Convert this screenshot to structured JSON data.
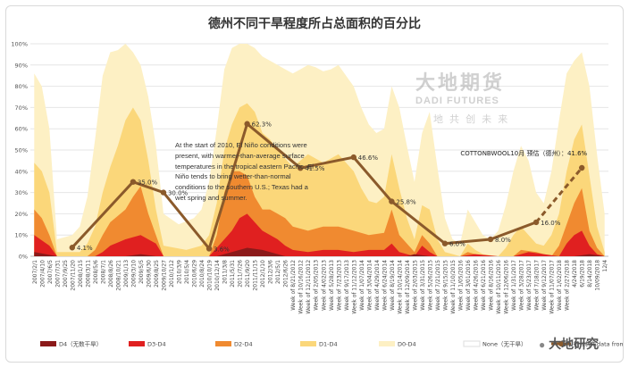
{
  "chart_data": {
    "type": "area",
    "title": "德州不同干旱程度所占总面积的百分比",
    "ylim": [
      0,
      100
    ],
    "yticks": [
      "0%",
      "10%",
      "20%",
      "30%",
      "40%",
      "50%",
      "60%",
      "70%",
      "80%",
      "90%",
      "100%"
    ],
    "x_tick_labels": [
      "2007/2/1",
      "2007/4/10",
      "2007/6/5",
      "2007/7/31",
      "2007/9/25",
      "2007/11/20",
      "2008/1/15",
      "2008/3/11",
      "2008/5/6",
      "2008/7/1",
      "2008/8/26",
      "2008/10/21",
      "2009/1/13",
      "2009/3/10",
      "2009/5/5",
      "2009/6/30",
      "2009/8/25",
      "2009/10/27",
      "2010/1/12",
      "2010/3/9",
      "2010/5/4",
      "2010/6/29",
      "2010/8/24",
      "2010/10/19",
      "2010/12/14",
      "2011/3/8",
      "2011/5/31",
      "2011/7/26",
      "2011/9/20",
      "2011/11/15",
      "2012/1/10",
      "2012/3/6",
      "2012/5/1",
      "2012/6/26",
      "Week of 8/21/2012",
      "Week of 10/16/2012",
      "Week of 12/11/2012",
      "Week of 2/05/2013",
      "Week of 4/02/2013",
      "Week of 5/28/2013",
      "Week of 7/23/2013",
      "Week of 9/17/2013",
      "Week of 11/12/2013",
      "Week of 1/07/2014",
      "Week of 3/04/2014",
      "Week of 4/29/2014",
      "Week of 6/24/2014",
      "Week of 8/19/2014",
      "Week of 10/14/2014",
      "Week of 12/09/2014",
      "Week of 2/03/2015",
      "Week of 3/31/2015",
      "Week of 5/26/2015",
      "Week of 7/21/2015",
      "Week of 9/15/2015",
      "Week of 11/10/2015",
      "Week of 1/05/2016",
      "Week of 3/01/2016",
      "Week of 4/26/2016",
      "Week of 6/21/2016",
      "Week of 8/16/2016",
      "Week of 10/11/2016",
      "Week of 12/06/2016",
      "Week of 1/31/2017",
      "Week of 3/28/2017",
      "Week of 5/23/2017",
      "Week of 7/18/2017",
      "Week of 9/12/2017",
      "Week of 11/07/2017",
      "Week of 1/02/2018",
      "Week of 2/27/2018",
      "4/24/2018",
      "6/19/2018",
      "8/14/2018",
      "10/09/2018",
      "12/4"
    ],
    "area_series": [
      {
        "name": "D4（无数干旱）",
        "color": "#8b1a1a",
        "values": [
          [
            0,
            2
          ],
          [
            3,
            0
          ],
          [
            12,
            0
          ],
          [
            14,
            1
          ],
          [
            16,
            0
          ],
          [
            24,
            0
          ],
          [
            26,
            2
          ],
          [
            28,
            4
          ],
          [
            30,
            3
          ],
          [
            32,
            1
          ],
          [
            33,
            0
          ],
          [
            49,
            0
          ],
          [
            50,
            1
          ],
          [
            52,
            0
          ],
          [
            57,
            0
          ],
          [
            61,
            0
          ],
          [
            71,
            0
          ],
          [
            73,
            1
          ],
          [
            75,
            0
          ]
        ]
      },
      {
        "name": "D3-D4",
        "color": "#e02020",
        "values": [
          [
            0,
            10
          ],
          [
            2,
            5
          ],
          [
            3,
            0
          ],
          [
            8,
            0
          ],
          [
            9,
            2
          ],
          [
            10,
            5
          ],
          [
            12,
            8
          ],
          [
            14,
            10
          ],
          [
            16,
            6
          ],
          [
            17,
            0
          ],
          [
            23,
            0
          ],
          [
            25,
            8
          ],
          [
            26,
            12
          ],
          [
            27,
            18
          ],
          [
            28,
            20
          ],
          [
            29,
            16
          ],
          [
            30,
            12
          ],
          [
            32,
            8
          ],
          [
            33,
            5
          ],
          [
            34,
            3
          ],
          [
            36,
            2
          ],
          [
            38,
            3
          ],
          [
            40,
            3
          ],
          [
            42,
            2
          ],
          [
            44,
            3
          ],
          [
            46,
            3
          ],
          [
            47,
            6
          ],
          [
            48,
            2
          ],
          [
            49,
            1
          ],
          [
            50,
            0
          ],
          [
            51,
            5
          ],
          [
            52,
            2
          ],
          [
            53,
            0
          ],
          [
            56,
            0
          ],
          [
            58,
            1
          ],
          [
            61,
            0
          ],
          [
            63,
            0
          ],
          [
            65,
            2
          ],
          [
            67,
            1
          ],
          [
            69,
            0
          ],
          [
            70,
            6
          ],
          [
            71,
            10
          ],
          [
            72,
            12
          ],
          [
            73,
            5
          ],
          [
            74,
            1
          ],
          [
            75,
            0
          ]
        ]
      },
      {
        "name": "D2-D4",
        "color": "#f08a30",
        "values": [
          [
            0,
            22
          ],
          [
            1,
            18
          ],
          [
            2,
            10
          ],
          [
            3,
            0
          ],
          [
            7,
            0
          ],
          [
            8,
            3
          ],
          [
            9,
            10
          ],
          [
            10,
            16
          ],
          [
            12,
            22
          ],
          [
            13,
            28
          ],
          [
            14,
            33
          ],
          [
            15,
            20
          ],
          [
            16,
            10
          ],
          [
            17,
            0
          ],
          [
            23,
            0
          ],
          [
            24,
            10
          ],
          [
            25,
            30
          ],
          [
            26,
            40
          ],
          [
            27,
            40
          ],
          [
            28,
            38
          ],
          [
            29,
            28
          ],
          [
            30,
            22
          ],
          [
            31,
            22
          ],
          [
            32,
            20
          ],
          [
            33,
            18
          ],
          [
            34,
            14
          ],
          [
            36,
            12
          ],
          [
            38,
            14
          ],
          [
            40,
            14
          ],
          [
            42,
            12
          ],
          [
            44,
            10
          ],
          [
            46,
            11
          ],
          [
            47,
            22
          ],
          [
            48,
            10
          ],
          [
            49,
            6
          ],
          [
            50,
            2
          ],
          [
            51,
            10
          ],
          [
            52,
            6
          ],
          [
            53,
            0
          ],
          [
            56,
            0
          ],
          [
            57,
            2
          ],
          [
            59,
            0
          ],
          [
            63,
            0
          ],
          [
            64,
            3
          ],
          [
            66,
            2
          ],
          [
            68,
            0
          ],
          [
            69,
            5
          ],
          [
            70,
            15
          ],
          [
            71,
            25
          ],
          [
            72,
            32
          ],
          [
            73,
            12
          ],
          [
            74,
            4
          ],
          [
            75,
            0
          ]
        ]
      },
      {
        "name": "D1-D4",
        "color": "#fbd77a",
        "values": [
          [
            0,
            44
          ],
          [
            1,
            40
          ],
          [
            2,
            30
          ],
          [
            3,
            2
          ],
          [
            6,
            2
          ],
          [
            7,
            6
          ],
          [
            8,
            14
          ],
          [
            9,
            30
          ],
          [
            10,
            42
          ],
          [
            11,
            52
          ],
          [
            12,
            64
          ],
          [
            13,
            70
          ],
          [
            14,
            64
          ],
          [
            15,
            45
          ],
          [
            16,
            22
          ],
          [
            17,
            5
          ],
          [
            20,
            3
          ],
          [
            22,
            5
          ],
          [
            23,
            10
          ],
          [
            24,
            25
          ],
          [
            25,
            50
          ],
          [
            26,
            62
          ],
          [
            27,
            70
          ],
          [
            28,
            72
          ],
          [
            29,
            68
          ],
          [
            30,
            58
          ],
          [
            31,
            55
          ],
          [
            32,
            50
          ],
          [
            33,
            46
          ],
          [
            34,
            42
          ],
          [
            35,
            45
          ],
          [
            36,
            48
          ],
          [
            37,
            46
          ],
          [
            38,
            44
          ],
          [
            39,
            46
          ],
          [
            40,
            48
          ],
          [
            41,
            44
          ],
          [
            42,
            40
          ],
          [
            43,
            32
          ],
          [
            44,
            26
          ],
          [
            45,
            25
          ],
          [
            46,
            28
          ],
          [
            47,
            48
          ],
          [
            48,
            32
          ],
          [
            49,
            18
          ],
          [
            50,
            8
          ],
          [
            51,
            24
          ],
          [
            52,
            22
          ],
          [
            53,
            8
          ],
          [
            54,
            2
          ],
          [
            56,
            0
          ],
          [
            57,
            6
          ],
          [
            58,
            3
          ],
          [
            59,
            1
          ],
          [
            61,
            0
          ],
          [
            62,
            4
          ],
          [
            63,
            10
          ],
          [
            64,
            14
          ],
          [
            65,
            10
          ],
          [
            66,
            6
          ],
          [
            67,
            5
          ],
          [
            68,
            10
          ],
          [
            69,
            20
          ],
          [
            70,
            40
          ],
          [
            71,
            55
          ],
          [
            72,
            62
          ],
          [
            73,
            38
          ],
          [
            74,
            14
          ],
          [
            75,
            2
          ]
        ]
      },
      {
        "name": "D0-D4",
        "color": "#fdf0c4",
        "values": [
          [
            0,
            86
          ],
          [
            1,
            80
          ],
          [
            2,
            60
          ],
          [
            3,
            8
          ],
          [
            5,
            10
          ],
          [
            6,
            14
          ],
          [
            7,
            28
          ],
          [
            8,
            55
          ],
          [
            9,
            85
          ],
          [
            10,
            96
          ],
          [
            11,
            97
          ],
          [
            12,
            100
          ],
          [
            13,
            96
          ],
          [
            14,
            90
          ],
          [
            15,
            75
          ],
          [
            16,
            52
          ],
          [
            17,
            20
          ],
          [
            19,
            15
          ],
          [
            21,
            18
          ],
          [
            22,
            22
          ],
          [
            23,
            35
          ],
          [
            24,
            60
          ],
          [
            25,
            88
          ],
          [
            26,
            98
          ],
          [
            27,
            100
          ],
          [
            28,
            100
          ],
          [
            29,
            98
          ],
          [
            30,
            94
          ],
          [
            31,
            92
          ],
          [
            32,
            90
          ],
          [
            33,
            88
          ],
          [
            34,
            86
          ],
          [
            35,
            88
          ],
          [
            36,
            90
          ],
          [
            37,
            89
          ],
          [
            38,
            87
          ],
          [
            39,
            88
          ],
          [
            40,
            90
          ],
          [
            41,
            85
          ],
          [
            42,
            80
          ],
          [
            43,
            70
          ],
          [
            44,
            62
          ],
          [
            45,
            58
          ],
          [
            46,
            60
          ],
          [
            47,
            80
          ],
          [
            48,
            70
          ],
          [
            49,
            52
          ],
          [
            50,
            35
          ],
          [
            51,
            58
          ],
          [
            52,
            68
          ],
          [
            53,
            42
          ],
          [
            54,
            18
          ],
          [
            55,
            8
          ],
          [
            56,
            6
          ],
          [
            57,
            22
          ],
          [
            58,
            16
          ],
          [
            59,
            10
          ],
          [
            60,
            8
          ],
          [
            61,
            12
          ],
          [
            62,
            24
          ],
          [
            63,
            40
          ],
          [
            64,
            52
          ],
          [
            65,
            45
          ],
          [
            66,
            30
          ],
          [
            67,
            25
          ],
          [
            68,
            40
          ],
          [
            69,
            64
          ],
          [
            70,
            86
          ],
          [
            71,
            92
          ],
          [
            72,
            96
          ],
          [
            73,
            80
          ],
          [
            74,
            48
          ],
          [
            75,
            20
          ]
        ]
      }
    ],
    "line_series": {
      "name": "德州棉羊data from...",
      "color": "#8b5a2b",
      "points": [
        [
          5,
          4.1
        ],
        [
          13,
          35.0
        ],
        [
          17,
          30.0
        ],
        [
          23,
          3.6
        ],
        [
          28,
          62.3
        ],
        [
          35,
          41.5
        ],
        [
          42,
          46.6
        ],
        [
          47,
          25.8
        ],
        [
          54,
          6.0
        ],
        [
          60,
          8.0
        ],
        [
          66,
          16.0
        ]
      ],
      "labels": [
        "4.1%",
        "35.0%",
        "30.0%",
        "3.6%",
        "62.3%",
        "41.5%",
        "46.6%",
        "25.8%",
        "6.0%",
        "8.0%",
        "16.0%"
      ],
      "forecast_points": [
        [
          66,
          16.0
        ],
        [
          72,
          41.6
        ]
      ],
      "forecast_label": "COTTONBWOOL10月 预估（德州）：41.6%"
    },
    "legend": [
      {
        "label": "D4（无数干旱）",
        "color": "#8b1a1a"
      },
      {
        "label": "D3-D4",
        "color": "#e02020"
      },
      {
        "label": "D2-D4",
        "color": "#f08a30"
      },
      {
        "label": "D1-D4",
        "color": "#fbd77a"
      },
      {
        "label": "D0-D4",
        "color": "#fdf0c4"
      },
      {
        "label": "None（无干旱）",
        "color": "#ffffff"
      },
      {
        "label": "德州棉羊data from...",
        "color": "#8b5a2b",
        "line": true
      }
    ],
    "legend_position": "bottom",
    "annotation": "At the start of 2010, El Niño conditions were present, with warmer-than-average surface temperatures in the tropical eastern Pacific. El Niño tends to bring wetter-than-normal conditions to the southern U.S.; Texas had a wet spring and summer.",
    "grid": true
  },
  "watermark": {
    "brand": "大地期货",
    "brand_en": "DADI FUTURES",
    "slogan": "地 共 创 未 来",
    "corner_brand": "大地研究"
  }
}
